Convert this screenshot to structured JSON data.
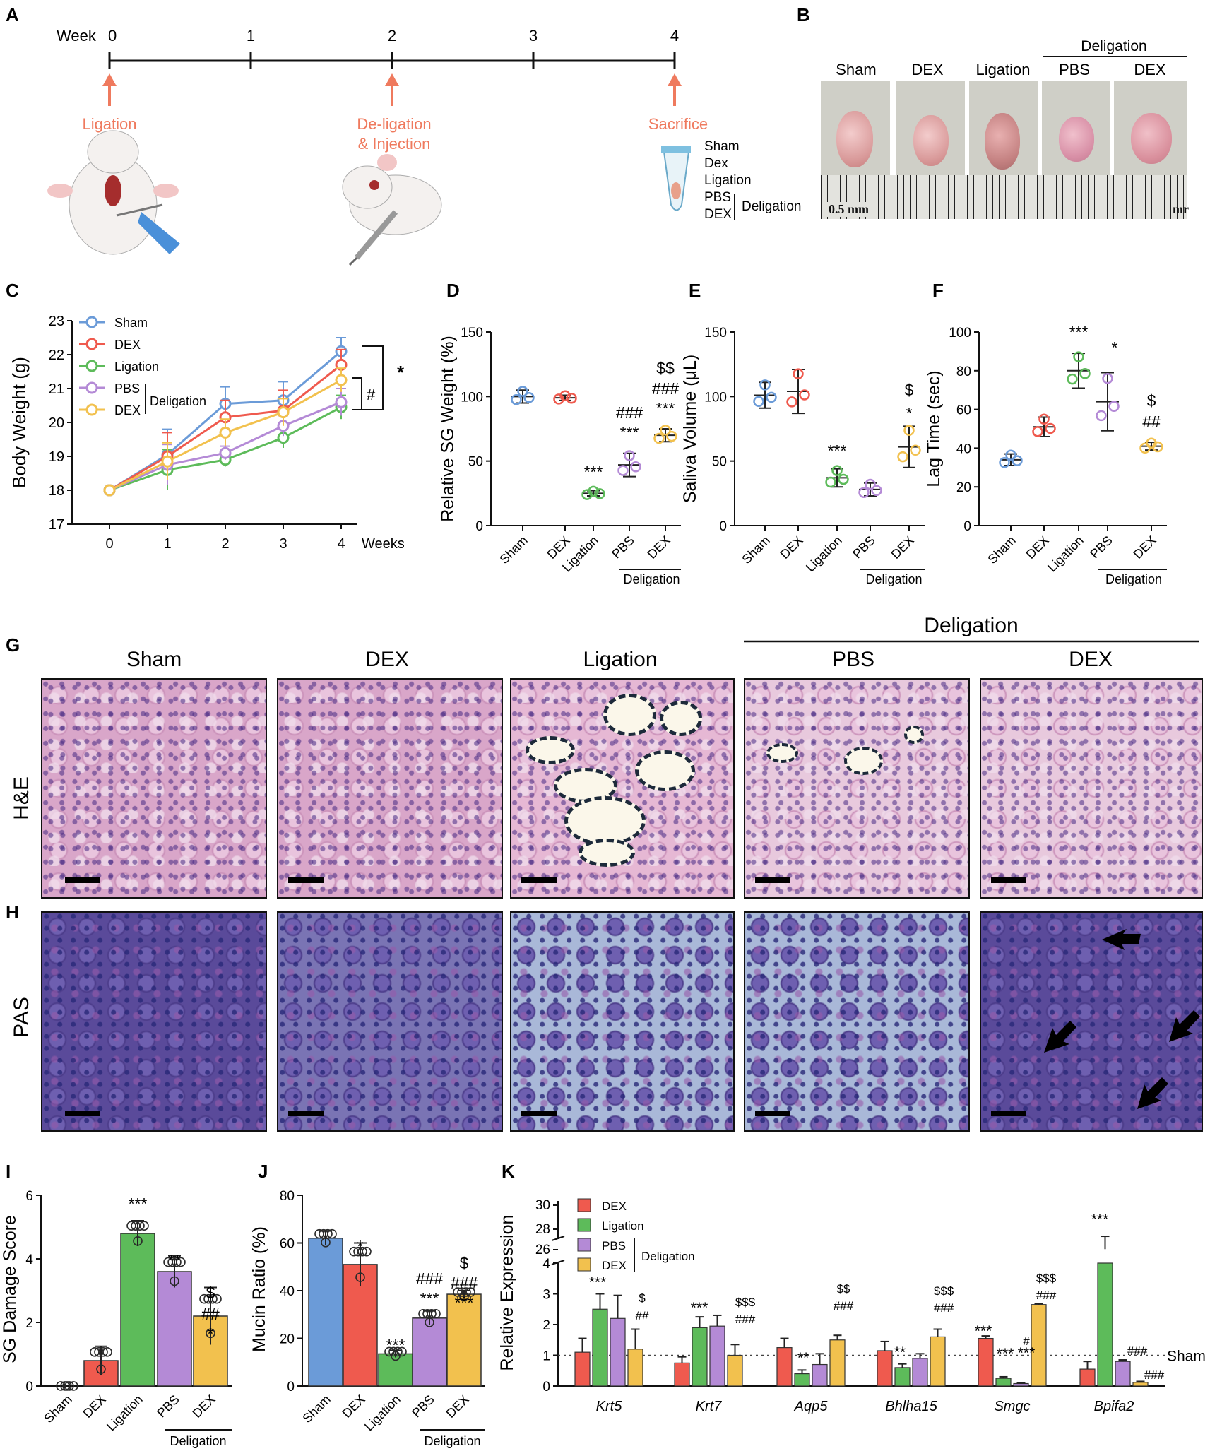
{
  "A": {
    "letter": "A",
    "week_label": "Week",
    "ticks": [
      "0",
      "1",
      "2",
      "3",
      "4"
    ],
    "events": [
      "Ligation",
      "De-ligation",
      "& Injection",
      "Sacrifice"
    ],
    "groups": [
      "Sham",
      "Dex",
      "Ligation",
      "PBS",
      "DEX"
    ],
    "delig": "Deligation"
  },
  "B": {
    "letter": "B",
    "header": "Deligation",
    "labels": [
      "Sham",
      "DEX",
      "Ligation",
      "PBS",
      "DEX"
    ],
    "ruler": "0.5 mm",
    "ruler_end": "mr"
  },
  "colors": {
    "Sham": "#6b9bd8",
    "DEX": "#ef5a4e",
    "Ligation": "#5dbb5a",
    "PBS": "#b48ad6",
    "DEX2": "#f2c14e",
    "event": "#ef7a5e"
  },
  "panels_common": {
    "cats": [
      "Sham",
      "DEX",
      "Ligation",
      "PBS",
      "DEX"
    ],
    "delig": "Deligation"
  },
  "C": {
    "letter": "C",
    "ylabel": "Body Weight (g)",
    "xlabel": "Weeks",
    "legend": [
      "Sham",
      "DEX",
      "Ligation",
      "PBS",
      "DEX"
    ],
    "delig": "Deligation",
    "sig": [
      "*",
      "#"
    ]
  },
  "D": {
    "letter": "D",
    "ylabel": "Relative SG Weight (%)",
    "ann": [
      "***",
      "###",
      "***",
      "$$",
      "###",
      "***"
    ]
  },
  "E": {
    "letter": "E",
    "ylabel": "Saliva Volume (μL)",
    "ann": [
      "***",
      "$",
      "*"
    ]
  },
  "F": {
    "letter": "F",
    "ylabel": "Lag Time (sec)",
    "ann": [
      "***",
      "*",
      "$",
      "##"
    ]
  },
  "G": {
    "letter": "G",
    "row": "H&E",
    "header": "Deligation",
    "cols": [
      "Sham",
      "DEX",
      "Ligation",
      "PBS",
      "DEX"
    ]
  },
  "H": {
    "letter": "H",
    "row": "PAS"
  },
  "I": {
    "letter": "I",
    "ylabel": "SG Damage Score",
    "ann": [
      "***",
      "**",
      "$",
      "##",
      "*"
    ]
  },
  "J": {
    "letter": "J",
    "ylabel": "Mucin Ratio (%)",
    "ann": [
      "*",
      "***",
      "###",
      "***",
      "$",
      "###",
      "***"
    ]
  },
  "K": {
    "letter": "K",
    "ylabel": "Relative Expression",
    "legend": [
      "DEX",
      "Ligation",
      "PBS",
      "DEX"
    ],
    "delig": "Deligation",
    "sham": "Sham",
    "genes": [
      "Krt5",
      "Krt7",
      "Aqp5",
      "Bhlha15",
      "Smgc",
      "Bpifa2"
    ]
  },
  "chart_data": [
    {
      "type": "line",
      "panel": "C",
      "x": [
        0,
        1,
        2,
        3,
        4
      ],
      "ylim": [
        17,
        23
      ],
      "ylabel": "Body Weight (g)",
      "xlabel": "Weeks",
      "series": [
        {
          "name": "Sham",
          "values": [
            18.0,
            19.05,
            20.55,
            20.65,
            22.1
          ],
          "err": [
            0,
            0.75,
            0.5,
            0.55,
            0.4
          ]
        },
        {
          "name": "DEX",
          "values": [
            18.0,
            19.0,
            20.15,
            20.35,
            21.7
          ],
          "err": [
            0,
            0.7,
            0.5,
            0.6,
            0.45
          ]
        },
        {
          "name": "Ligation",
          "values": [
            18.0,
            18.6,
            18.9,
            19.55,
            20.45
          ],
          "err": [
            0,
            0.6,
            0.2,
            0.3,
            0.35
          ]
        },
        {
          "name": "PBS",
          "values": [
            18.0,
            18.75,
            19.1,
            19.9,
            20.6
          ],
          "err": [
            0,
            0.6,
            0.2,
            0.3,
            0.4
          ]
        },
        {
          "name": "DEX",
          "values": [
            18.0,
            18.85,
            19.7,
            20.3,
            21.25
          ],
          "err": [
            0,
            0.55,
            0.4,
            0.4,
            0.35
          ]
        }
      ]
    },
    {
      "type": "scatter",
      "panel": "D",
      "categories": [
        "Sham",
        "DEX",
        "Ligation",
        "PBS",
        "DEX"
      ],
      "ylim": [
        0,
        150
      ],
      "values": [
        100,
        99,
        25,
        47,
        70
      ],
      "err": [
        5,
        2,
        2,
        9,
        5
      ]
    },
    {
      "type": "scatter",
      "panel": "E",
      "categories": [
        "Sham",
        "DEX",
        "Ligation",
        "PBS",
        "DEX"
      ],
      "ylim": [
        0,
        150
      ],
      "values": [
        101,
        104,
        37,
        28,
        61
      ],
      "err": [
        10,
        17,
        7,
        5,
        16
      ]
    },
    {
      "type": "scatter",
      "panel": "F",
      "categories": [
        "Sham",
        "DEX",
        "Ligation",
        "PBS",
        "DEX"
      ],
      "ylim": [
        0,
        100
      ],
      "values": [
        34,
        51,
        80,
        64,
        41
      ],
      "err": [
        3,
        5,
        9,
        15,
        2
      ]
    },
    {
      "type": "bar",
      "panel": "I",
      "categories": [
        "Sham",
        "DEX",
        "Ligation",
        "PBS",
        "DEX"
      ],
      "ylim": [
        0,
        6
      ],
      "values": [
        0,
        0.8,
        4.8,
        3.6,
        2.2
      ],
      "err": [
        0,
        0.45,
        0.4,
        0.5,
        0.9
      ]
    },
    {
      "type": "bar",
      "panel": "J",
      "categories": [
        "Sham",
        "DEX",
        "Ligation",
        "PBS",
        "DEX"
      ],
      "ylim": [
        0,
        80
      ],
      "values": [
        62,
        51,
        13.5,
        28.5,
        38.5
      ],
      "err": [
        3,
        9,
        1.5,
        3,
        1.5
      ]
    },
    {
      "type": "bar",
      "panel": "K",
      "categories": [
        "Krt5",
        "Krt7",
        "Aqp5",
        "Bhlha15",
        "Smgc",
        "Bpifa2"
      ],
      "ylim": [
        0,
        30
      ],
      "series": [
        {
          "name": "DEX",
          "values": [
            1.1,
            0.75,
            1.25,
            1.15,
            1.55,
            0.55
          ],
          "err": [
            0.45,
            0.2,
            0.3,
            0.3,
            0.08,
            0.25
          ]
        },
        {
          "name": "Ligation",
          "values": [
            2.5,
            1.9,
            0.4,
            0.6,
            0.25,
            27.0
          ],
          "err": [
            0.5,
            0.35,
            0.12,
            0.12,
            0.05,
            0.8
          ]
        },
        {
          "name": "PBS",
          "values": [
            2.2,
            1.95,
            0.7,
            0.9,
            0.08,
            0.8
          ],
          "err": [
            0.75,
            0.35,
            0.35,
            0.15,
            0.02,
            0.05
          ]
        },
        {
          "name": "DEX",
          "values": [
            1.2,
            1.0,
            1.5,
            1.6,
            2.65,
            0.12
          ],
          "err": [
            0.65,
            0.35,
            0.15,
            0.25,
            0.03,
            0.03
          ]
        }
      ]
    }
  ]
}
